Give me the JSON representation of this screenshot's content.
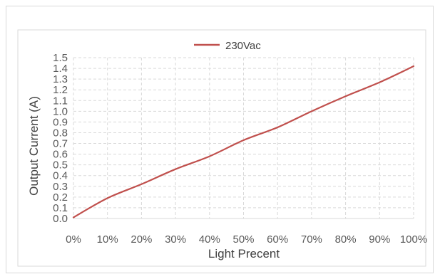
{
  "chart_data": {
    "type": "line",
    "x": [
      "0%",
      "10%",
      "20%",
      "30%",
      "40%",
      "50%",
      "60%",
      "70%",
      "80%",
      "90%",
      "100%"
    ],
    "series": [
      {
        "name": "230Vac",
        "color": "#c0504d",
        "values": [
          0.01,
          0.19,
          0.32,
          0.46,
          0.58,
          0.73,
          0.85,
          1.0,
          1.14,
          1.27,
          1.42
        ]
      }
    ],
    "xlabel": "Light Precent",
    "ylabel": "Output Current (A)",
    "ylim": [
      0,
      1.5
    ],
    "yticks": [
      "0.0",
      "0.1",
      "0.2",
      "0.3",
      "0.4",
      "0.5",
      "0.6",
      "0.7",
      "0.8",
      "0.9",
      "1.0",
      "1.1",
      "1.2",
      "1.3",
      "1.4",
      "1.5"
    ],
    "grid": true,
    "legend_position": "top-center"
  }
}
